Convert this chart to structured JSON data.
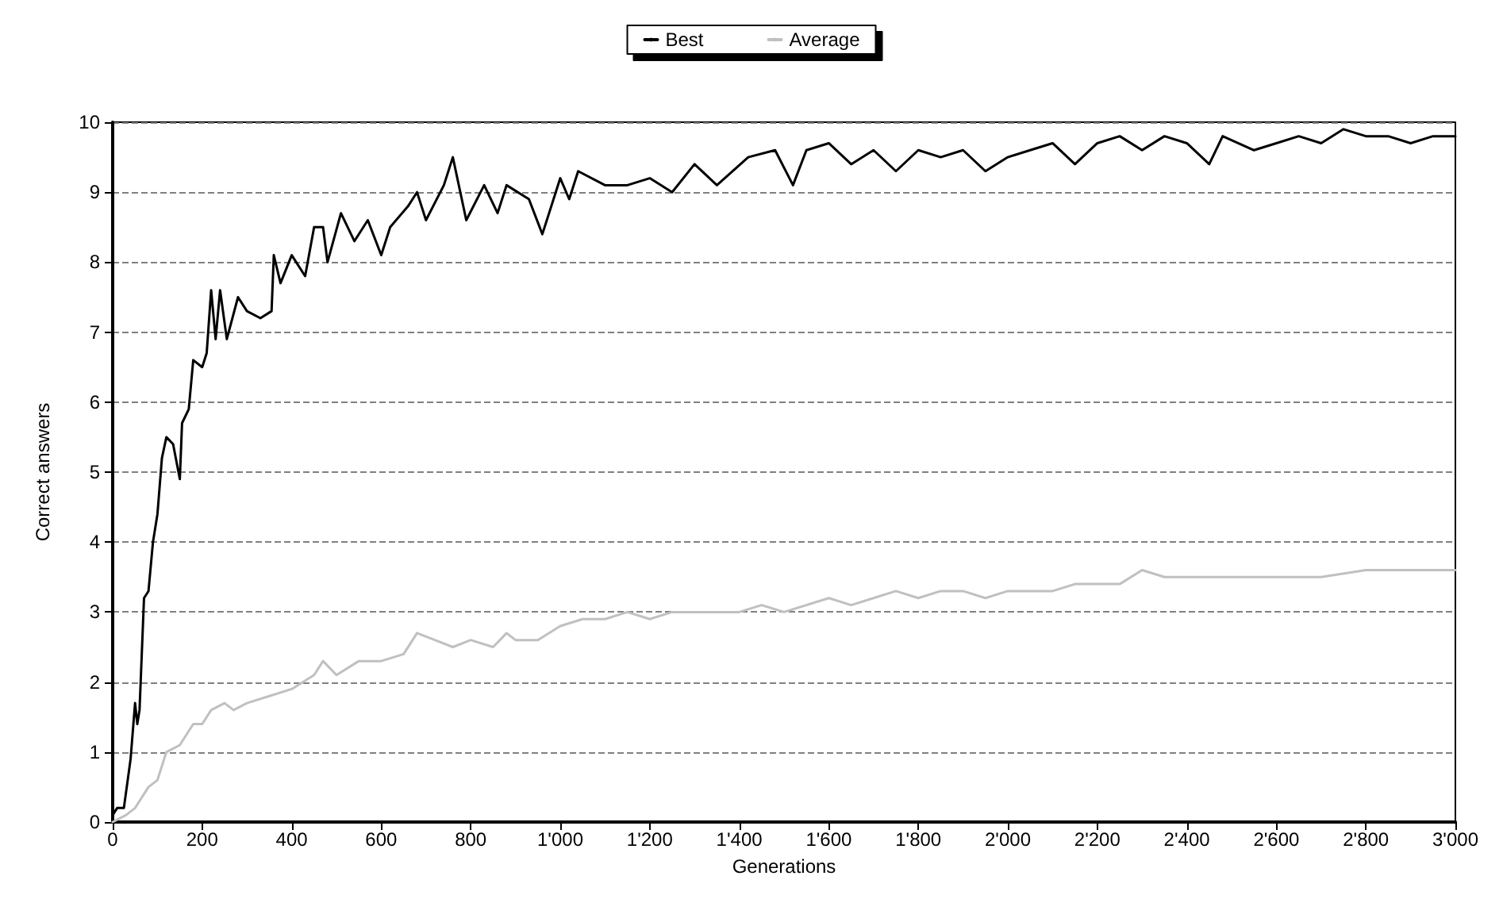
{
  "chart_data": {
    "type": "line",
    "xlabel": "Generations",
    "ylabel": "Correct answers",
    "xlim": [
      0,
      3000
    ],
    "xticks": [
      0,
      200,
      400,
      600,
      800,
      {
        "value": 1000,
        "label": "1'000"
      },
      {
        "value": 1200,
        "label": "1'200"
      },
      {
        "value": 1400,
        "label": "1'400"
      },
      {
        "value": 1600,
        "label": "1'600"
      },
      {
        "value": 1800,
        "label": "1'800"
      },
      {
        "value": 2000,
        "label": "2'000"
      },
      {
        "value": 2200,
        "label": "2'200"
      },
      {
        "value": 2400,
        "label": "2'400"
      },
      {
        "value": 2600,
        "label": "2'600"
      },
      {
        "value": 2800,
        "label": "2'800"
      },
      {
        "value": 3000,
        "label": "3'000"
      }
    ],
    "ylim": [
      0,
      10
    ],
    "yticks": [
      0,
      1,
      2,
      3,
      4,
      5,
      6,
      7,
      8,
      9,
      10
    ],
    "grid": "y",
    "legend": "top",
    "marker": "none",
    "line_style": "solid",
    "series": [
      {
        "name": "Best",
        "color": "#000000",
        "x": [
          0,
          10,
          25,
          40,
          50,
          55,
          60,
          70,
          80,
          90,
          100,
          110,
          120,
          135,
          150,
          155,
          170,
          180,
          200,
          210,
          220,
          230,
          240,
          255,
          280,
          300,
          330,
          355,
          360,
          375,
          400,
          430,
          450,
          470,
          480,
          510,
          540,
          570,
          600,
          620,
          660,
          680,
          700,
          740,
          760,
          790,
          830,
          860,
          880,
          930,
          960,
          1000,
          1020,
          1040,
          1100,
          1150,
          1200,
          1250,
          1300,
          1350,
          1420,
          1480,
          1520,
          1550,
          1600,
          1650,
          1700,
          1750,
          1800,
          1850,
          1900,
          1950,
          2000,
          2050,
          2100,
          2150,
          2200,
          2250,
          2300,
          2350,
          2400,
          2450,
          2480,
          2550,
          2600,
          2650,
          2700,
          2750,
          2800,
          2850,
          2900,
          2950,
          3000
        ],
        "values": [
          0.1,
          0.2,
          0.2,
          0.9,
          1.7,
          1.4,
          1.6,
          3.2,
          3.3,
          4.0,
          4.4,
          5.2,
          5.5,
          5.4,
          4.9,
          5.7,
          5.9,
          6.6,
          6.5,
          6.7,
          7.6,
          6.9,
          7.6,
          6.9,
          7.5,
          7.3,
          7.2,
          7.3,
          8.1,
          7.7,
          8.1,
          7.8,
          8.5,
          8.5,
          8.0,
          8.7,
          8.3,
          8.6,
          8.1,
          8.5,
          8.8,
          9.0,
          8.6,
          9.1,
          9.5,
          8.6,
          9.1,
          8.7,
          9.1,
          8.9,
          8.4,
          9.2,
          8.9,
          9.3,
          9.1,
          9.1,
          9.2,
          9.0,
          9.4,
          9.1,
          9.5,
          9.6,
          9.1,
          9.6,
          9.7,
          9.4,
          9.6,
          9.3,
          9.6,
          9.5,
          9.6,
          9.3,
          9.5,
          9.6,
          9.7,
          9.4,
          9.7,
          9.8,
          9.6,
          9.8,
          9.7,
          9.4,
          9.8,
          9.6,
          9.7,
          9.8,
          9.7,
          9.9,
          9.8,
          9.8,
          9.7,
          9.8,
          9.8
        ]
      },
      {
        "name": "Average",
        "color": "#c0c0c0",
        "x": [
          0,
          30,
          50,
          80,
          100,
          120,
          150,
          180,
          200,
          220,
          250,
          270,
          300,
          350,
          400,
          450,
          470,
          500,
          550,
          600,
          650,
          680,
          720,
          760,
          800,
          850,
          880,
          900,
          950,
          1000,
          1050,
          1100,
          1150,
          1200,
          1250,
          1300,
          1350,
          1400,
          1450,
          1500,
          1550,
          1600,
          1650,
          1700,
          1750,
          1800,
          1850,
          1900,
          1950,
          2000,
          2050,
          2100,
          2150,
          2200,
          2250,
          2300,
          2350,
          2400,
          2500,
          2600,
          2700,
          2800,
          2900,
          3000
        ],
        "values": [
          0,
          0.1,
          0.2,
          0.5,
          0.6,
          1.0,
          1.1,
          1.4,
          1.4,
          1.6,
          1.7,
          1.6,
          1.7,
          1.8,
          1.9,
          2.1,
          2.3,
          2.1,
          2.3,
          2.3,
          2.4,
          2.7,
          2.6,
          2.5,
          2.6,
          2.5,
          2.7,
          2.6,
          2.6,
          2.8,
          2.9,
          2.9,
          3.0,
          2.9,
          3.0,
          3.0,
          3.0,
          3.0,
          3.1,
          3.0,
          3.1,
          3.2,
          3.1,
          3.2,
          3.3,
          3.2,
          3.3,
          3.3,
          3.2,
          3.3,
          3.3,
          3.3,
          3.4,
          3.4,
          3.4,
          3.6,
          3.5,
          3.5,
          3.5,
          3.5,
          3.5,
          3.6,
          3.6,
          3.6
        ]
      }
    ]
  }
}
